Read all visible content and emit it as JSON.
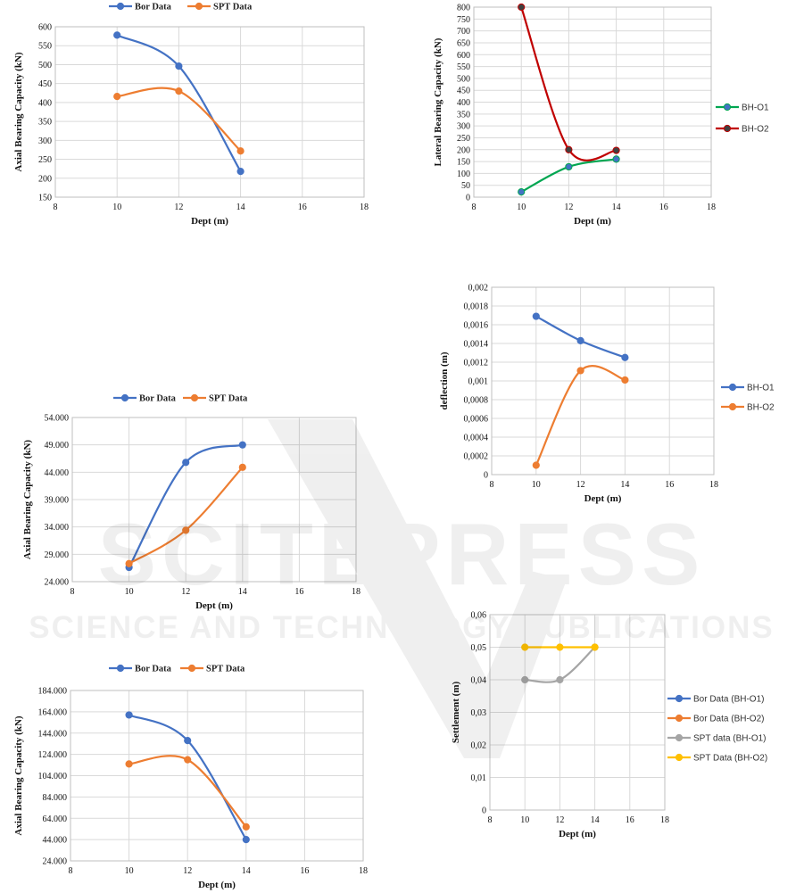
{
  "watermark": {
    "main": "SCITEPRESS",
    "sub": "SCIENCE AND TECHNOLOGY PUBLICATIONS"
  },
  "chart_data": [
    {
      "type": "line",
      "xlabel": "Dept (m)",
      "ylabel": "Axial Bearing Capacity (kN)",
      "xlim": [
        8,
        18
      ],
      "xticks": [
        8,
        10,
        12,
        14,
        16,
        18
      ],
      "ylim": [
        150,
        600
      ],
      "yticks": [
        150,
        200,
        250,
        300,
        350,
        400,
        450,
        500,
        550,
        600
      ],
      "ytick_labels": [
        "150",
        "200",
        "250",
        "300",
        "350",
        "400",
        "450",
        "500",
        "550",
        "600"
      ],
      "grid": true,
      "legend_position": "top",
      "series": [
        {
          "name": "Bor Data",
          "color": "#4472C4",
          "x": [
            10,
            12,
            14
          ],
          "y": [
            578,
            496,
            218
          ]
        },
        {
          "name": "SPT Data",
          "color": "#ED7D31",
          "x": [
            10,
            12,
            14
          ],
          "y": [
            416,
            430,
            272
          ]
        }
      ]
    },
    {
      "type": "line",
      "xlabel": "Dept (m)",
      "ylabel": "Lateral Bearing Capacity (kN)",
      "xlim": [
        8,
        18
      ],
      "xticks": [
        8,
        10,
        12,
        14,
        16,
        18
      ],
      "ylim": [
        0,
        800
      ],
      "yticks": [
        0,
        50,
        100,
        150,
        200,
        250,
        300,
        350,
        400,
        450,
        500,
        550,
        600,
        650,
        700,
        750,
        800
      ],
      "ytick_labels": [
        "0",
        "50",
        "100",
        "150",
        "200",
        "250",
        "300",
        "350",
        "400",
        "450",
        "500",
        "550",
        "600",
        "650",
        "700",
        "750",
        "800"
      ],
      "grid": true,
      "legend_position": "right",
      "series": [
        {
          "name": "BH-O1",
          "color": "#00A651",
          "marker_color": "#4472C4",
          "x": [
            10,
            12,
            14
          ],
          "y": [
            22,
            128,
            160
          ]
        },
        {
          "name": "BH-O2",
          "color": "#C00000",
          "marker_color": "#404040",
          "x": [
            10,
            12,
            14
          ],
          "y": [
            800,
            200,
            197
          ]
        }
      ]
    },
    {
      "type": "line",
      "xlabel": "Dept (m)",
      "ylabel": "Axial Bearing Capacity (kN)",
      "xlim": [
        8,
        18
      ],
      "xticks": [
        8,
        10,
        12,
        14,
        16,
        18
      ],
      "ylim": [
        24000,
        54000
      ],
      "yticks": [
        24000,
        29000,
        34000,
        39000,
        44000,
        49000,
        54000
      ],
      "ytick_labels": [
        "24.000",
        "29.000",
        "34.000",
        "39.000",
        "44.000",
        "49.000",
        "54.000"
      ],
      "grid": true,
      "legend_position": "top",
      "series": [
        {
          "name": "Bor Data",
          "color": "#4472C4",
          "x": [
            10,
            12,
            14
          ],
          "y": [
            26600,
            45800,
            49000
          ]
        },
        {
          "name": "SPT Data",
          "color": "#ED7D31",
          "x": [
            10,
            12,
            14
          ],
          "y": [
            27300,
            33400,
            44900
          ]
        }
      ]
    },
    {
      "type": "line",
      "xlabel": "Dept (m)",
      "ylabel": "deflection (m)",
      "xlim": [
        8,
        18
      ],
      "xticks": [
        8,
        10,
        12,
        14,
        16,
        18
      ],
      "ylim": [
        0,
        0.002
      ],
      "yticks": [
        0,
        0.0002,
        0.0004,
        0.0006,
        0.0008,
        0.001,
        0.0012,
        0.0014,
        0.0016,
        0.0018,
        0.002
      ],
      "ytick_labels": [
        "0",
        "0,0002",
        "0,0004",
        "0,0006",
        "0,0008",
        "0,001",
        "0,0012",
        "0,0014",
        "0,0016",
        "0,0018",
        "0,002"
      ],
      "grid": true,
      "legend_position": "right",
      "series": [
        {
          "name": "BH-O1",
          "color": "#4472C4",
          "x": [
            10,
            12,
            14
          ],
          "y": [
            0.00169,
            0.00143,
            0.00125
          ]
        },
        {
          "name": "BH-O2",
          "color": "#ED7D31",
          "x": [
            10,
            12,
            14
          ],
          "y": [
            0.0001,
            0.00111,
            0.00101
          ]
        }
      ]
    },
    {
      "type": "line",
      "xlabel": "Dept (m)",
      "ylabel": "Axial Bearing Capacity (kN)",
      "xlim": [
        8,
        18
      ],
      "xticks": [
        8,
        10,
        12,
        14,
        16,
        18
      ],
      "ylim": [
        24000,
        184000
      ],
      "yticks": [
        24000,
        44000,
        64000,
        84000,
        104000,
        124000,
        144000,
        164000,
        184000
      ],
      "ytick_labels": [
        "24.000",
        "44.000",
        "64.000",
        "84.000",
        "104.000",
        "124.000",
        "144.000",
        "164.000",
        "184.000"
      ],
      "grid": true,
      "legend_position": "top",
      "series": [
        {
          "name": "Bor Data",
          "color": "#4472C4",
          "x": [
            10,
            12,
            14
          ],
          "y": [
            161000,
            137000,
            44000
          ]
        },
        {
          "name": "SPT Data",
          "color": "#ED7D31",
          "x": [
            10,
            12,
            14
          ],
          "y": [
            115000,
            119000,
            56000
          ]
        }
      ]
    },
    {
      "type": "line",
      "xlabel": "Dept (m)",
      "ylabel": "Settlement (m)",
      "xlim": [
        8,
        18
      ],
      "xticks": [
        8,
        10,
        12,
        14,
        16,
        18
      ],
      "ylim": [
        0,
        0.06
      ],
      "yticks": [
        0,
        0.01,
        0.02,
        0.03,
        0.04,
        0.05,
        0.06
      ],
      "ytick_labels": [
        "0",
        "0,01",
        "0,02",
        "0,03",
        "0,04",
        "0,05",
        "0,06"
      ],
      "grid": true,
      "legend_position": "right",
      "series": [
        {
          "name": "Bor Data (BH-O1)",
          "color": "#4472C4",
          "x": [],
          "y": []
        },
        {
          "name": "Bor Data (BH-O2)",
          "color": "#ED7D31",
          "x": [],
          "y": []
        },
        {
          "name": "SPT data (BH-O1)",
          "color": "#A5A5A5",
          "x": [
            10,
            12,
            14
          ],
          "y": [
            0.04,
            0.04,
            0.05
          ]
        },
        {
          "name": "SPT Data (BH-O2)",
          "color": "#FFC000",
          "x": [
            10,
            12,
            14
          ],
          "y": [
            0.05,
            0.05,
            0.05
          ]
        }
      ]
    }
  ]
}
